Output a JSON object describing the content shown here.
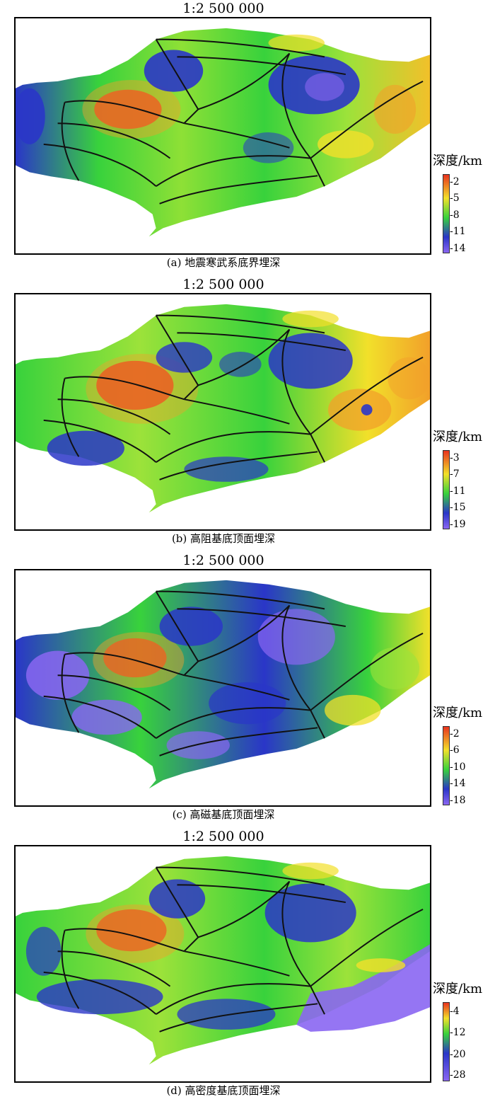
{
  "panels": [
    {
      "scale": "1:2 500 000",
      "caption": "(a) 地震寒武系底界埋深",
      "legend_title": "深度/km",
      "ticks": [
        "-2",
        "-5",
        "-8",
        "-11",
        "-14"
      ],
      "colors": {
        "shallow": "#e8321e",
        "mid_high": "#f2e02a",
        "mid": "#38d23c",
        "mid_low": "#2a36c8",
        "deep": "#8a66f2"
      }
    },
    {
      "scale": "1:2 500 000",
      "caption": "(b) 高阻基底顶面埋深",
      "legend_title": "深度/km",
      "ticks": [
        "-3",
        "-7",
        "-11",
        "-15",
        "-19"
      ],
      "colors": {
        "shallow": "#e8321e",
        "mid_high": "#f2e02a",
        "mid": "#38d23c",
        "mid_low": "#2a36c8",
        "deep": "#8a66f2"
      }
    },
    {
      "scale": "1:2 500 000",
      "caption": "(c) 高磁基底顶面埋深",
      "legend_title": "深度/km",
      "ticks": [
        "-2",
        "-6",
        "-10",
        "-14",
        "-18"
      ],
      "colors": {
        "shallow": "#e8321e",
        "mid_high": "#f2e02a",
        "mid": "#38d23c",
        "mid_low": "#2a36c8",
        "deep": "#8a66f2"
      }
    },
    {
      "scale": "1:2 500 000",
      "caption": "(d) 高密度基底顶面埋深",
      "legend_title": "深度/km",
      "ticks": [
        "-4",
        "-12",
        "-20",
        "-28"
      ],
      "colors": {
        "shallow": "#e8321e",
        "mid_high": "#f2e02a",
        "mid": "#38d23c",
        "mid_low": "#2a36c8",
        "deep": "#8a66f2"
      }
    }
  ]
}
